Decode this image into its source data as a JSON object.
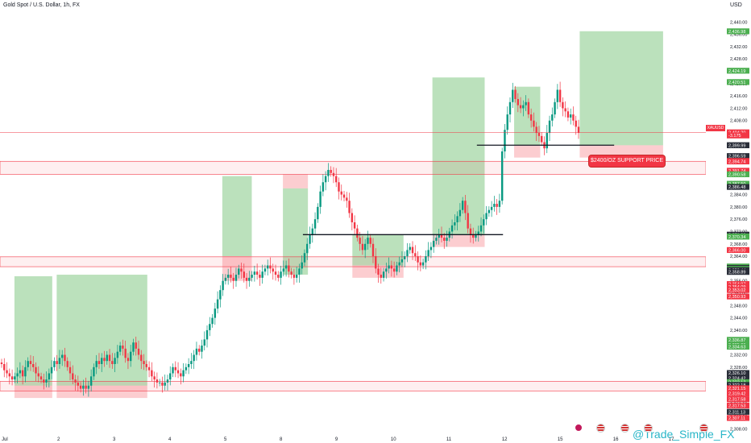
{
  "header": {
    "symbol_title": "Gold Spot / U.S. Dollar, 1h, FX",
    "currency": "USD"
  },
  "price_badge": {
    "symbol": "XAUUSD",
    "price": "2,404.20",
    "change": "-3.175"
  },
  "annotation": {
    "text": "$2400/OZ SUPPORT PRICE"
  },
  "watermark": "@Trade_Simple_FX",
  "chart_data": {
    "type": "candlestick",
    "title": "Gold Spot / U.S. Dollar, 1h, FX",
    "xlabel": "",
    "ylabel": "USD",
    "ylim": [
      2306,
      2444
    ],
    "x_ticks": [
      "Jul",
      "2",
      "3",
      "4",
      "5",
      "8",
      "9",
      "10",
      "11",
      "12",
      "15",
      "16",
      "17"
    ],
    "y_ticks": [
      "2,440.00",
      "2,436.00",
      "2,432.00",
      "2,428.00",
      "2,424.00",
      "2,420.00",
      "2,416.00",
      "2,412.00",
      "2,408.00",
      "2,404.00",
      "2,400.00",
      "2,396.00",
      "2,392.00",
      "2,388.00",
      "2,384.00",
      "2,380.00",
      "2,376.00",
      "2,372.00",
      "2,368.00",
      "2,364.00",
      "2,360.00",
      "2,356.00",
      "2,352.00",
      "2,348.00",
      "2,344.00",
      "2,340.00",
      "2,336.00",
      "2,332.00",
      "2,328.00",
      "2,324.00",
      "2,320.00",
      "2,316.00",
      "2,312.00",
      "2,308.00"
    ],
    "axis_price_labels": [
      {
        "price": 2436.98,
        "text": "2,436.98",
        "color": "#4caf50"
      },
      {
        "price": 2424.19,
        "text": "2,424.19",
        "color": "#4caf50"
      },
      {
        "price": 2420.51,
        "text": "2,420.51",
        "color": "#4caf50"
      },
      {
        "price": 2404.2,
        "text": "2,404.20",
        "color": "#f23645"
      },
      {
        "price": 2403.175,
        "text": "-3.175",
        "color": "#f23645"
      },
      {
        "price": 2400.02,
        "text": "2,400.02",
        "color": "#2a2e39"
      },
      {
        "price": 2399.99,
        "text": "2,399.99",
        "color": "#2a2e39"
      },
      {
        "price": 2396.5,
        "text": "2,396.59",
        "color": "#2a2e39"
      },
      {
        "price": 2394.9,
        "text": "2,394.90",
        "color": "#f23645"
      },
      {
        "price": 2394.74,
        "text": "2,394.74",
        "color": "#f23645"
      },
      {
        "price": 2391.74,
        "text": "2,391.74",
        "color": "#f23645"
      },
      {
        "price": 2390.58,
        "text": "2,390.58",
        "color": "#4caf50"
      },
      {
        "price": 2387.5,
        "text": "2,387.50",
        "color": "#4caf50"
      },
      {
        "price": 2386.48,
        "text": "2,386.48",
        "color": "#2a2e39"
      },
      {
        "price": 2371.0,
        "text": "2,371.00",
        "color": "#2a2e39"
      },
      {
        "price": 2370.43,
        "text": "2,370.43",
        "color": "#4caf50"
      },
      {
        "price": 2370.34,
        "text": "2,370.34",
        "color": "#4caf50"
      },
      {
        "price": 2366.0,
        "text": "2,366.00",
        "color": "#f23645"
      },
      {
        "price": 2360.66,
        "text": "2,360.66",
        "color": "#4caf50"
      },
      {
        "price": 2360.59,
        "text": "2,360.59",
        "color": "#4caf50"
      },
      {
        "price": 2360.21,
        "text": "2,360.21",
        "color": "#2a2e39"
      },
      {
        "price": 2359.88,
        "text": "2,359.88",
        "color": "#4caf50"
      },
      {
        "price": 2359.49,
        "text": "2,359.49",
        "color": "#2a2e39"
      },
      {
        "price": 2359.44,
        "text": "2,359.44",
        "color": "#2a2e39"
      },
      {
        "price": 2358.89,
        "text": "2,358.89",
        "color": "#2a2e39"
      },
      {
        "price": 2354.97,
        "text": "2,354.97",
        "color": "#f23645"
      },
      {
        "price": 2354.09,
        "text": "2,354.09",
        "color": "#f23645"
      },
      {
        "price": 2353.02,
        "text": "2,353.02",
        "color": "#f23645"
      },
      {
        "price": 2350.93,
        "text": "2,350.93",
        "color": "#f23645"
      },
      {
        "price": 2336.87,
        "text": "2,336.87",
        "color": "#4caf50"
      },
      {
        "price": 2335.29,
        "text": "2,335.29",
        "color": "#4caf50"
      },
      {
        "price": 2334.63,
        "text": "2,334.63",
        "color": "#4caf50"
      },
      {
        "price": 2326.1,
        "text": "2,326.10",
        "color": "#2a2e39"
      },
      {
        "price": 2324.42,
        "text": "2,324.42",
        "color": "#2a2e39"
      },
      {
        "price": 2323.13,
        "text": "2,323.13",
        "color": "#4caf50"
      },
      {
        "price": 2322.23,
        "text": "2,322.23",
        "color": "#2a2e39"
      },
      {
        "price": 2322.18,
        "text": "2,322.18",
        "color": "#2a2e39"
      },
      {
        "price": 2321.15,
        "text": "2,321.15",
        "color": "#f23645"
      },
      {
        "price": 2319.42,
        "text": "2,319.42",
        "color": "#f23645"
      },
      {
        "price": 2317.58,
        "text": "2,317.58",
        "color": "#f23645"
      },
      {
        "price": 2315.53,
        "text": "2,317.53",
        "color": "#f23645"
      },
      {
        "price": 2313.5,
        "text": "2,311.13",
        "color": "#2a2e39"
      },
      {
        "price": 2311.5,
        "text": "2,307.11",
        "color": "#f23645"
      }
    ],
    "zones": [
      {
        "kind": "target",
        "x0": 0.26,
        "x1": 0.94,
        "y0": 2322,
        "y1": 2357.5
      },
      {
        "kind": "stop",
        "x0": 0.26,
        "x1": 0.94,
        "y0": 2318,
        "y1": 2322
      },
      {
        "kind": "target",
        "x0": 1.02,
        "x1": 2.65,
        "y0": 2322,
        "y1": 2358
      },
      {
        "kind": "stop",
        "x0": 1.02,
        "x1": 2.65,
        "y0": 2318,
        "y1": 2322
      },
      {
        "kind": "target",
        "x0": 4.0,
        "x1": 4.53,
        "y0": 2364,
        "y1": 2390
      },
      {
        "kind": "stop",
        "x0": 4.0,
        "x1": 4.53,
        "y0": 2356,
        "y1": 2364
      },
      {
        "kind": "stop",
        "x0": 5.09,
        "x1": 5.54,
        "y0": 2386,
        "y1": 2390.5
      },
      {
        "kind": "target",
        "x0": 5.09,
        "x1": 5.54,
        "y0": 2358,
        "y1": 2386
      },
      {
        "kind": "target",
        "x0": 6.34,
        "x1": 6.73,
        "y0": 2361,
        "y1": 2371
      },
      {
        "kind": "stop",
        "x0": 6.34,
        "x1": 6.73,
        "y0": 2357,
        "y1": 2361
      },
      {
        "kind": "target",
        "x0": 6.73,
        "x1": 7.26,
        "y0": 2361,
        "y1": 2371
      },
      {
        "kind": "stop",
        "x0": 6.73,
        "x1": 7.26,
        "y0": 2357,
        "y1": 2361
      },
      {
        "kind": "target",
        "x0": 7.78,
        "x1": 8.72,
        "y0": 2371,
        "y1": 2422
      },
      {
        "kind": "stop",
        "x0": 7.78,
        "x1": 8.72,
        "y0": 2367,
        "y1": 2371
      },
      {
        "kind": "target",
        "x0": 9.25,
        "x1": 9.72,
        "y0": 2400,
        "y1": 2419
      },
      {
        "kind": "stop",
        "x0": 9.25,
        "x1": 9.72,
        "y0": 2396,
        "y1": 2400
      },
      {
        "kind": "target",
        "x0": 10.43,
        "x1": 11.93,
        "y0": 2400,
        "y1": 2437
      },
      {
        "kind": "stop",
        "x0": 10.43,
        "x1": 11.93,
        "y0": 2396,
        "y1": 2400
      }
    ],
    "horizontal_bands": [
      {
        "y0": 2390.6,
        "y1": 2394.8
      },
      {
        "y0": 2360.6,
        "y1": 2363.8
      },
      {
        "y0": 2320.3,
        "y1": 2323.4
      }
    ],
    "horizontal_lines": [
      {
        "price": 2404.2,
        "x0": 0,
        "x1": 12.7,
        "style": "thin-red"
      },
      {
        "price": 2400.02,
        "x0": 8.58,
        "x1": 11.05,
        "style": "black"
      },
      {
        "price": 2371.0,
        "x0": 5.45,
        "x1": 9.05,
        "style": "black"
      }
    ],
    "candles_close": [
      2329,
      2327,
      2326,
      2325,
      2324,
      2325,
      2326,
      2327,
      2325,
      2328,
      2330,
      2329,
      2328,
      2326,
      2325,
      2324,
      2323,
      2324,
      2326,
      2328,
      2330,
      2329,
      2331,
      2332,
      2330,
      2328,
      2326,
      2324,
      2323,
      2322,
      2321,
      2322,
      2321,
      2322,
      2325,
      2328,
      2330,
      2329,
      2331,
      2330,
      2332,
      2330,
      2329,
      2331,
      2333,
      2335,
      2334,
      2331,
      2330,
      2333,
      2336,
      2334,
      2332,
      2330,
      2329,
      2328,
      2327,
      2325,
      2324,
      2323,
      2323,
      2322,
      2323,
      2324,
      2326,
      2328,
      2327,
      2326,
      2325,
      2327,
      2328,
      2329,
      2330,
      2332,
      2334,
      2333,
      2335,
      2337,
      2340,
      2342,
      2344,
      2347,
      2350,
      2353,
      2356,
      2357,
      2358,
      2357,
      2356,
      2358,
      2360,
      2359,
      2357,
      2356,
      2357,
      2358,
      2359,
      2358,
      2357,
      2359,
      2360,
      2361,
      2360,
      2359,
      2358,
      2357,
      2359,
      2360,
      2361,
      2359,
      2358,
      2357,
      2358,
      2360,
      2362,
      2365,
      2368,
      2371,
      2373,
      2376,
      2380,
      2385,
      2388,
      2390,
      2392,
      2391,
      2390,
      2388,
      2385,
      2384,
      2383,
      2382,
      2378,
      2375,
      2373,
      2370,
      2368,
      2366,
      2368,
      2370,
      2368,
      2364,
      2360,
      2358,
      2357,
      2359,
      2360,
      2361,
      2360,
      2359,
      2361,
      2362,
      2363,
      2364,
      2366,
      2367,
      2365,
      2364,
      2362,
      2361,
      2362,
      2364,
      2366,
      2367,
      2369,
      2370,
      2371,
      2370,
      2369,
      2370,
      2372,
      2374,
      2375,
      2377,
      2379,
      2382,
      2378,
      2373,
      2371,
      2370,
      2371,
      2372,
      2374,
      2376,
      2378,
      2379,
      2380,
      2381,
      2380,
      2382,
      2398,
      2405,
      2410,
      2414,
      2418,
      2415,
      2413,
      2412,
      2413,
      2414,
      2410,
      2408,
      2406,
      2404,
      2403,
      2401,
      2399,
      2404,
      2408,
      2410,
      2414,
      2418,
      2414,
      2412,
      2411,
      2409,
      2410,
      2408,
      2406,
      2404
    ],
    "x_range": [
      0,
      12.7
    ]
  }
}
